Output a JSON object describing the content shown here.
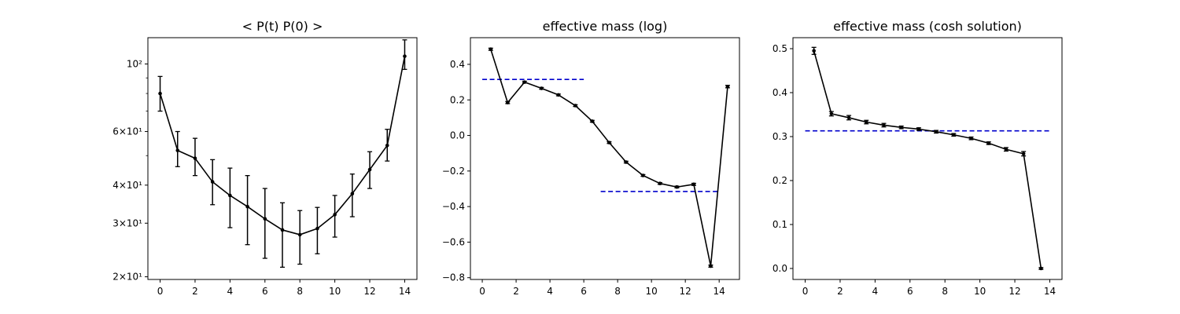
{
  "chart_data": [
    {
      "type": "line",
      "title": "< P(t)  P(0) >",
      "xlabel": "",
      "ylabel": "",
      "yscale": "log",
      "xlim": [
        -0.7,
        14.7
      ],
      "ylim": [
        19.6,
        122
      ],
      "grid": false,
      "x_ticks": [
        0,
        2,
        4,
        6,
        8,
        10,
        12,
        14
      ],
      "x_tick_labels": [
        "0",
        "2",
        "4",
        "6",
        "8",
        "10",
        "12",
        "14"
      ],
      "y_ticks": [
        20,
        30,
        40,
        60,
        100
      ],
      "y_tick_labels": [
        "2×10¹",
        "3×10¹",
        "4×10¹",
        "6×10¹",
        "10²"
      ],
      "y_minor_ticks": [
        50,
        70,
        80,
        90
      ],
      "series": [
        {
          "color": "#000000",
          "x": [
            0,
            1,
            2,
            3,
            4,
            5,
            6,
            7,
            8,
            9,
            10,
            11,
            12,
            13,
            14
          ],
          "y": [
            80,
            52,
            49,
            41,
            37,
            34,
            31,
            28.5,
            27.5,
            28.8,
            32,
            37.5,
            45,
            54,
            106
          ],
          "yerr_low": [
            10,
            6,
            6,
            6.5,
            8,
            8.5,
            8,
            7,
            5.5,
            5,
            5,
            6,
            6,
            6,
            10
          ],
          "yerr_high": [
            11,
            8,
            8,
            7.5,
            8.5,
            9,
            8,
            6.5,
            5.5,
            5,
            5,
            6,
            6.5,
            7,
            14
          ]
        }
      ]
    },
    {
      "type": "line",
      "title": "effective mass (log)",
      "xlabel": "",
      "ylabel": "",
      "xlim": [
        -0.7,
        15.2
      ],
      "ylim": [
        -0.81,
        0.55
      ],
      "grid": false,
      "x_ticks": [
        0,
        2,
        4,
        6,
        8,
        10,
        12,
        14
      ],
      "x_tick_labels": [
        "0",
        "2",
        "4",
        "6",
        "8",
        "10",
        "12",
        "14"
      ],
      "y_ticks": [
        0.4,
        0.2,
        0.0,
        -0.2,
        -0.4,
        -0.6,
        -0.8
      ],
      "y_tick_labels": [
        "0.4",
        "0.2",
        "0.0",
        "−0.2",
        "−0.4",
        "−0.6",
        "−0.8"
      ],
      "series": [
        {
          "color": "#000000",
          "x": [
            0.5,
            1.5,
            2.5,
            3.5,
            4.5,
            5.5,
            6.5,
            7.5,
            8.5,
            9.5,
            10.5,
            11.5,
            12.5,
            13.5,
            14.5
          ],
          "y": [
            0.485,
            0.185,
            0.3,
            0.265,
            0.228,
            0.168,
            0.08,
            -0.04,
            -0.15,
            -0.225,
            -0.27,
            -0.29,
            -0.275,
            -0.735,
            0.275
          ],
          "yerr": [
            0.006,
            0.006,
            0.005,
            0.005,
            0.005,
            0.005,
            0.005,
            0.005,
            0.005,
            0.005,
            0.005,
            0.005,
            0.006,
            0.006,
            0.007
          ]
        }
      ],
      "reference_lines": [
        {
          "color": "#0000cc",
          "style": "dashed",
          "x": [
            0,
            6
          ],
          "y": 0.315
        },
        {
          "color": "#0000cc",
          "style": "dashed",
          "x": [
            7,
            14
          ],
          "y": -0.315
        }
      ]
    },
    {
      "type": "line",
      "title": "effective mass (cosh solution)",
      "xlabel": "",
      "ylabel": "",
      "xlim": [
        -0.7,
        14.7
      ],
      "ylim": [
        -0.025,
        0.525
      ],
      "grid": false,
      "x_ticks": [
        0,
        2,
        4,
        6,
        8,
        10,
        12,
        14
      ],
      "x_tick_labels": [
        "0",
        "2",
        "4",
        "6",
        "8",
        "10",
        "12",
        "14"
      ],
      "y_ticks": [
        0.0,
        0.1,
        0.2,
        0.3,
        0.4,
        0.5
      ],
      "y_tick_labels": [
        "0.0",
        "0.1",
        "0.2",
        "0.3",
        "0.4",
        "0.5"
      ],
      "series": [
        {
          "color": "#000000",
          "x": [
            0.5,
            1.5,
            2.5,
            3.5,
            4.5,
            5.5,
            6.5,
            7.5,
            8.5,
            9.5,
            10.5,
            11.5,
            12.5,
            13.5
          ],
          "y": [
            0.495,
            0.352,
            0.343,
            0.333,
            0.326,
            0.321,
            0.317,
            0.311,
            0.304,
            0.296,
            0.285,
            0.271,
            0.261,
            0.0
          ],
          "yerr": [
            0.008,
            0.005,
            0.005,
            0.004,
            0.004,
            0.003,
            0.003,
            0.003,
            0.003,
            0.003,
            0.003,
            0.004,
            0.005,
            0.002
          ]
        }
      ],
      "reference_lines": [
        {
          "color": "#0000cc",
          "style": "dashed",
          "x": [
            0,
            14
          ],
          "y": 0.313
        }
      ]
    }
  ]
}
